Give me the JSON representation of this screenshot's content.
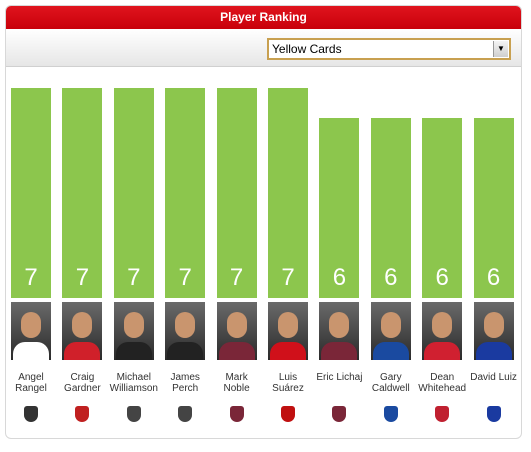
{
  "chart_data": {
    "type": "bar",
    "title": "Player Ranking",
    "selector": "Yellow Cards",
    "categories": [
      "Angel Rangel",
      "Craig Gardner",
      "Michael Williamson",
      "James Perch",
      "Mark Noble",
      "Luis Suárez",
      "Eric Lichaj",
      "Gary Caldwell",
      "Dean Whitehead",
      "David Luiz"
    ],
    "values": [
      7,
      7,
      7,
      7,
      7,
      7,
      6,
      6,
      6,
      6
    ],
    "color": "#8cc64d"
  }
}
